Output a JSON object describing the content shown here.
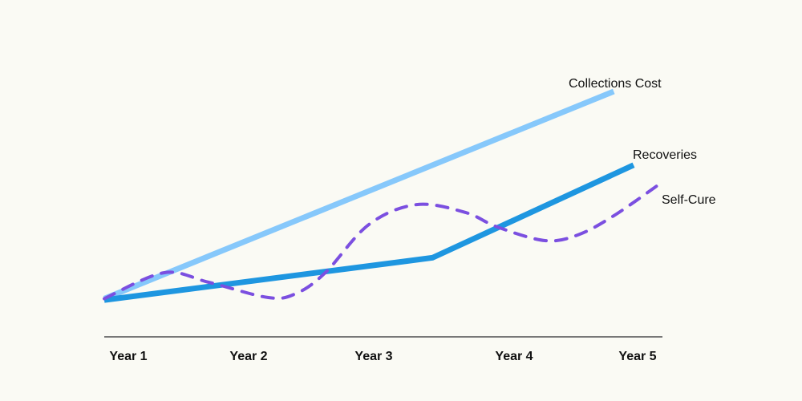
{
  "chart_data": {
    "type": "line",
    "title": "",
    "xlabel": "",
    "ylabel": "",
    "categories": [
      "Year 1",
      "Year 2",
      "Year 3",
      "Year 4",
      "Year 5"
    ],
    "xlim": [
      1,
      5.3
    ],
    "ylim": [
      0,
      100
    ],
    "y_axis_shown": false,
    "grid": false,
    "legend": "inline labels at line ends",
    "series": [
      {
        "name": "Collections Cost",
        "color": "#86c8fb",
        "style": "solid",
        "x": [
          1,
          4.85
        ],
        "y": [
          14,
          90
        ]
      },
      {
        "name": "Recoveries",
        "color": "#1e96e0",
        "style": "solid",
        "x": [
          1,
          3.48,
          5
        ],
        "y": [
          13.5,
          29,
          63
        ]
      },
      {
        "name": "Self-Cure",
        "color": "#7b4fe0",
        "style": "dashed",
        "x": [
          1,
          1.45,
          1.79,
          2.24,
          2.45,
          2.67,
          3.0,
          3.36,
          3.73,
          3.97,
          4.33,
          4.58,
          4.85,
          5.21
        ],
        "y": [
          14,
          23.5,
          20,
          14.4,
          15.9,
          23.5,
          41.2,
          48.5,
          45.6,
          40.3,
          35.3,
          37.4,
          44.4,
          56.5
        ]
      }
    ]
  }
}
